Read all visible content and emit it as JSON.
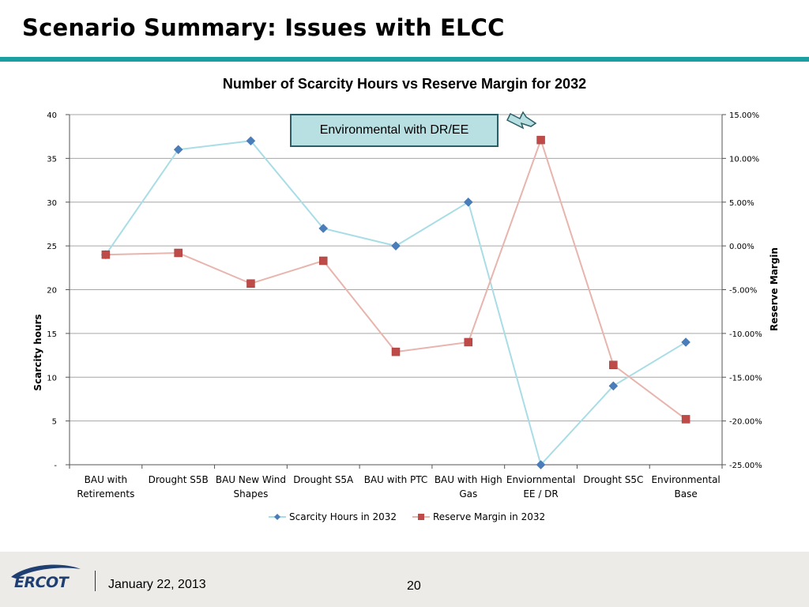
{
  "slide": {
    "title": "Scenario Summary: Issues with ELCC",
    "footer_date": "January 22, 2013",
    "page_number": "20",
    "logo_text": "ERCOT"
  },
  "callout": {
    "text": "Environmental with DR/EE"
  },
  "colors": {
    "accent_teal": "#1aa0a0",
    "scarcity_line": "#a9dde6",
    "scarcity_marker": "#4a7ebb",
    "margin_line": "#e7b5ad",
    "margin_marker": "#be4b48",
    "logo_blue": "#1f3f73"
  },
  "chart_data": {
    "type": "line",
    "title": "Number of Scarcity Hours vs Reserve Margin for 2032",
    "ylabel": "Scarcity hours",
    "y2label": "Reserve Margin",
    "ylim": [
      0,
      40
    ],
    "y2lim": [
      -25,
      15
    ],
    "yticks": [
      "40",
      "35",
      "30",
      "25",
      "20",
      "15",
      "10",
      "5",
      "-"
    ],
    "y2ticks": [
      "15.00%",
      "10.00%",
      "5.00%",
      "0.00%",
      "-5.00%",
      "-10.00%",
      "-15.00%",
      "-20.00%",
      "-25.00%"
    ],
    "categories": [
      [
        "BAU with",
        "Retirements"
      ],
      [
        "Drought S5B"
      ],
      [
        "BAU New Wind",
        "Shapes"
      ],
      [
        "Drought S5A"
      ],
      [
        "BAU with PTC"
      ],
      [
        "BAU with High",
        "Gas"
      ],
      [
        "Enviornmental",
        "EE / DR"
      ],
      [
        "Drought S5C"
      ],
      [
        "Environmental",
        "Base"
      ]
    ],
    "series": [
      {
        "name": "Scarcity Hours in 2032",
        "axis": "left",
        "values": [
          24,
          36,
          37,
          27,
          25,
          30,
          0,
          9,
          14
        ]
      },
      {
        "name": "Reserve Margin in 2032",
        "axis": "right",
        "values": [
          -1.0,
          -0.8,
          -4.3,
          -1.7,
          -12.1,
          -11.0,
          12.1,
          -13.6,
          -19.8
        ]
      }
    ],
    "grid": true,
    "legend": "bottom"
  }
}
